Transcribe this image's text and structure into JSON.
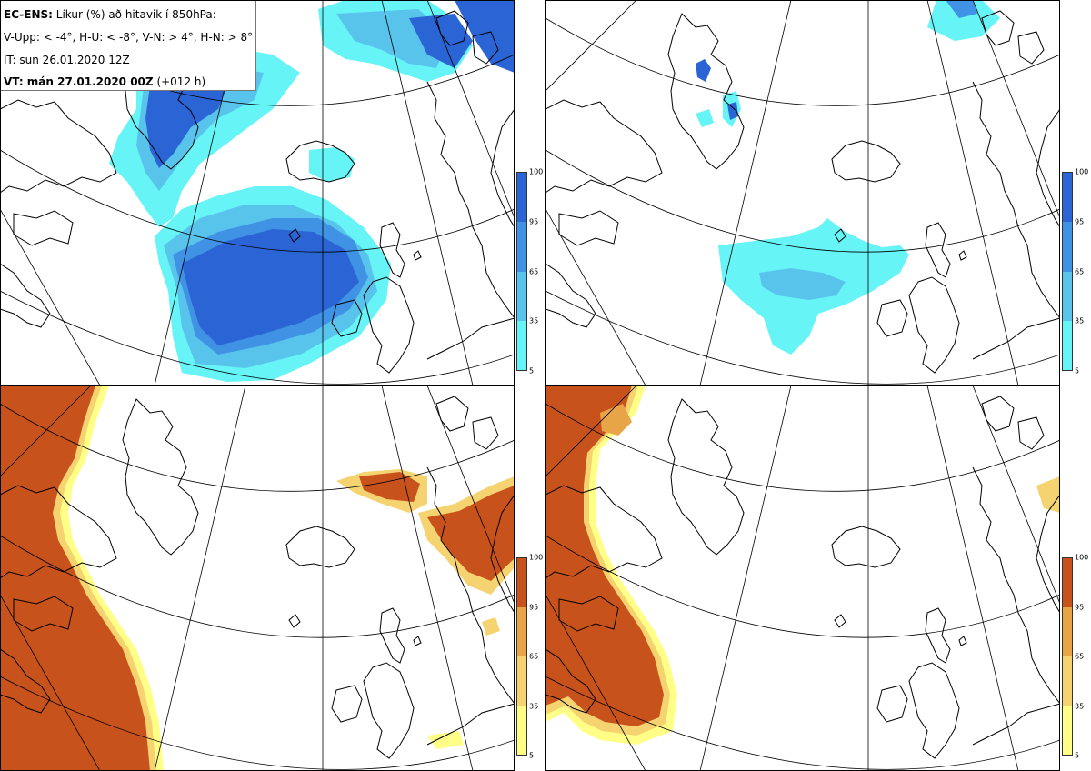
{
  "title_box": {
    "line1_bold": "EC-ENS:",
    "line1_rest": "Líkur (%) að hitavik í 850hPa:",
    "line2": "V-Upp: < -4°, H-U: < -8°, V-N: > 4°, H-N: > 8°",
    "line3": "IT: sun 26.01.2020 12Z",
    "line4_bold": "VT: mán 27.01.2020 00Z",
    "line4_rest": "(+012 h)"
  },
  "legend_cold": {
    "ticks": [
      "100",
      "95",
      "65",
      "35",
      "5"
    ],
    "colors": [
      "#2b64d4",
      "#3f92e4",
      "#58c4ec",
      "#66f4f6"
    ]
  },
  "legend_warm": {
    "ticks": [
      "100",
      "95",
      "65",
      "35",
      "5"
    ],
    "colors": [
      "#c8521c",
      "#e8a548",
      "#f4d370",
      "#ffff88"
    ]
  }
}
